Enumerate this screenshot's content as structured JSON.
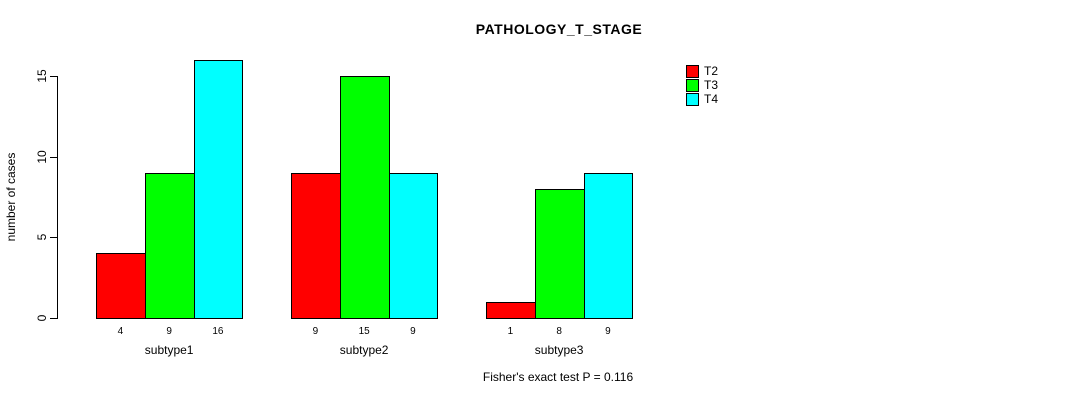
{
  "chart_data": {
    "type": "bar",
    "title": "PATHOLOGY_T_STAGE",
    "ylabel": "number of cases",
    "xlabel": "",
    "categories": [
      "subtype1",
      "subtype2",
      "subtype3"
    ],
    "series": [
      {
        "name": "T2",
        "color": "#ff0000",
        "values": [
          4,
          9,
          1
        ]
      },
      {
        "name": "T3",
        "color": "#00ff00",
        "values": [
          9,
          15,
          8
        ]
      },
      {
        "name": "T4",
        "color": "#00ffff",
        "values": [
          16,
          9,
          9
        ]
      }
    ],
    "yticks": [
      0,
      5,
      10,
      15
    ],
    "ylim": [
      0,
      16
    ],
    "grid": false,
    "bar_value_labels_shown": true,
    "legend_position": "top-right",
    "annotation": "Fisher's exact test P = 0.116",
    "background_color": "#ffffff",
    "bar_border_color": "#000000"
  }
}
